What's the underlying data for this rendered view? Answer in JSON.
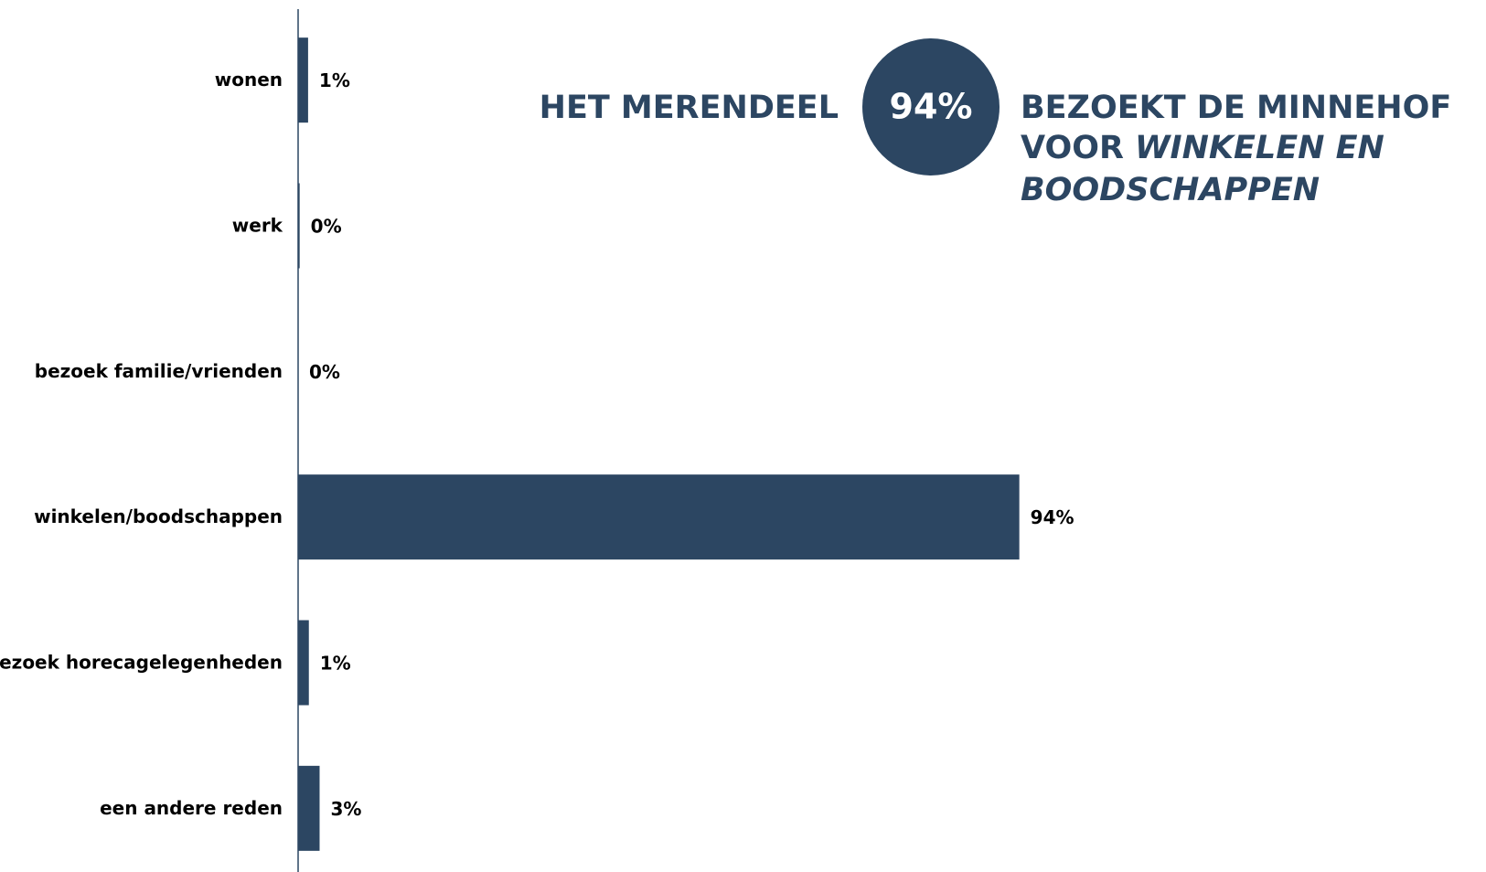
{
  "chart_data": {
    "type": "bar",
    "orientation": "horizontal",
    "categories": [
      "wonen",
      "werk",
      "bezoek familie/vrienden",
      "winkelen/boodschappen",
      "bezoek horecagelegenheden",
      "een andere reden"
    ],
    "values": [
      1.3,
      0.2,
      0,
      94,
      1.4,
      2.8
    ],
    "value_labels": [
      "1%",
      "0%",
      "0%",
      "94%",
      "1%",
      "3%"
    ],
    "color": "#2c4662",
    "xlim": [
      0,
      100
    ],
    "annotation": {
      "left": "HET MERENDEEL",
      "circle": "94%",
      "line1": "BEZOEKT DE MINNEHOF",
      "line2a": "VOOR",
      "line2b": "WINKELEN EN",
      "line3": "BOODSCHAPPEN"
    }
  }
}
